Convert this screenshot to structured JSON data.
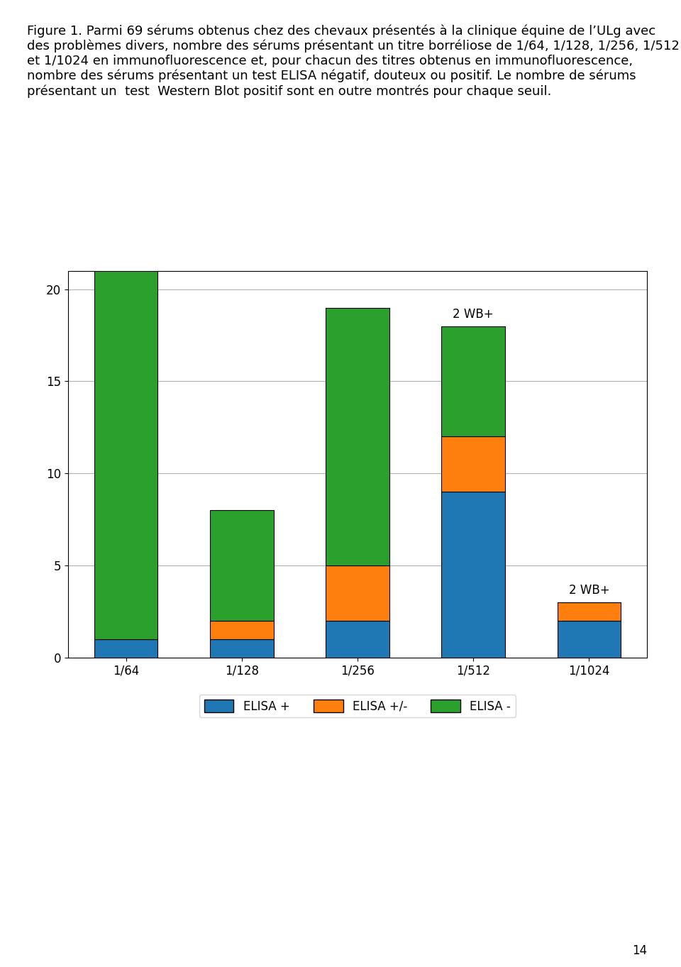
{
  "chart_data": {
    "type": "bar",
    "stacked": true,
    "title": "Figure 1. Parmi 69 sérums obtenus chez des chevaux présentés à la clinique équine de l’ULg avec des problèmes divers, nombre des sérums présentant un titre borréliose de 1/64, 1/128, 1/256, 1/512 et 1/1024 en immunofluorescence et, pour chacun des titres obtenus en immunofluorescence, nombre des sérums présentant un test ELISA négatif, douteux ou positif. Le nombre de sérums présentant un  test  Western Blot positif sont en outre montrés pour chaque seuil.",
    "categories": [
      "1/64",
      "1/128",
      "1/256",
      "1/512",
      "1/1024"
    ],
    "series": [
      {
        "name": "ELISA +",
        "values": [
          1,
          1,
          2,
          9,
          2
        ]
      },
      {
        "name": "ELISA +/-",
        "values": [
          0,
          1,
          3,
          3,
          1
        ]
      },
      {
        "name": "ELISA -",
        "values": [
          20,
          6,
          14,
          6,
          0
        ]
      }
    ],
    "ylim": [
      0,
      21
    ],
    "yticks": [
      0,
      5,
      10,
      15,
      20
    ],
    "grid": true,
    "legend": "lower center",
    "annotations": [
      {
        "text": "2 WB+",
        "category": "1/512"
      },
      {
        "text": "2 WB+",
        "category": "1/1024"
      },
      {
        "text": "14"
      }
    ]
  }
}
